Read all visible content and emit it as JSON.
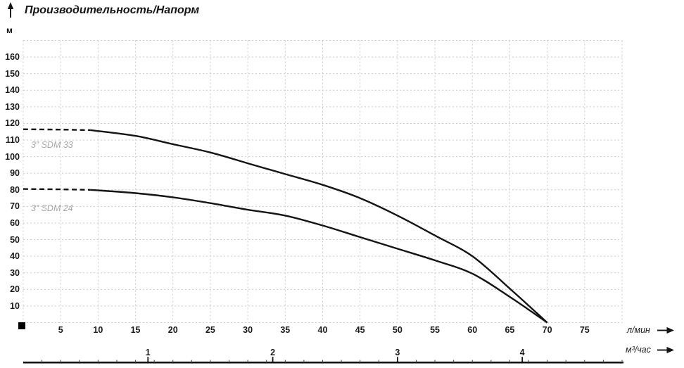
{
  "title": "Производительность/Напорм",
  "axes": {
    "y_unit": "м",
    "x1_unit": "л/мин",
    "x2_unit": "м³/час"
  },
  "colors": {
    "curve": "#141414",
    "grid": "#c9c9c9",
    "text": "#1a1a1a",
    "muted_label": "#a8a8a8",
    "axis_line": "#141414"
  },
  "chart_data": {
    "type": "line",
    "title": "Производительность/Напорм",
    "ylabel": "м",
    "xlabel_primary": "л/мин",
    "xlabel_secondary": "м³/час",
    "xlim": [
      0,
      80
    ],
    "ylim": [
      0,
      170
    ],
    "grid": {
      "x_step": 5,
      "y_step": 10,
      "style": "dotted"
    },
    "y_ticks": [
      10,
      20,
      30,
      40,
      50,
      60,
      70,
      80,
      90,
      100,
      110,
      120,
      130,
      140,
      150,
      160
    ],
    "x_ticks_lmin": [
      5,
      10,
      15,
      20,
      25,
      30,
      35,
      40,
      45,
      50,
      55,
      60,
      65,
      70,
      75
    ],
    "x_ticks_m3h": [
      1,
      2,
      3,
      4
    ],
    "m3h_to_lmin": 16.6667,
    "legend_position": "on-curve",
    "series": [
      {
        "name": "3” SDM 33",
        "dashed_until_x": 9,
        "points": [
          [
            0,
            116.5
          ],
          [
            5,
            116.3
          ],
          [
            9,
            116
          ],
          [
            15,
            112.5
          ],
          [
            20,
            107.5
          ],
          [
            25,
            102.5
          ],
          [
            30,
            96
          ],
          [
            35,
            89.5
          ],
          [
            40,
            83
          ],
          [
            45,
            75
          ],
          [
            50,
            64.5
          ],
          [
            55,
            52.5
          ],
          [
            60,
            40
          ],
          [
            65,
            20.5
          ],
          [
            70,
            0
          ]
        ]
      },
      {
        "name": "3” SDM 24",
        "dashed_until_x": 9,
        "points": [
          [
            0,
            80.5
          ],
          [
            5,
            80.3
          ],
          [
            9,
            80
          ],
          [
            15,
            78
          ],
          [
            20,
            75.5
          ],
          [
            25,
            72
          ],
          [
            30,
            68
          ],
          [
            35,
            64.5
          ],
          [
            40,
            58.5
          ],
          [
            45,
            51.5
          ],
          [
            50,
            44.5
          ],
          [
            55,
            37.5
          ],
          [
            60,
            29.5
          ],
          [
            65,
            15.5
          ],
          [
            70,
            0
          ]
        ]
      }
    ]
  }
}
